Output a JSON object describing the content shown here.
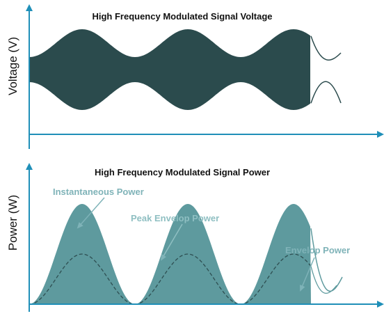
{
  "top_panel": {
    "title": "High Frequency Modulated Signal Voltage",
    "ylabel": "Voltage (V)"
  },
  "bottom_panel": {
    "title": "High Frequency Modulated Signal Power",
    "ylabel": "Power (W)",
    "annotations": {
      "instantaneous": "Instantaneous Power",
      "peak_envelope": "Peak Envelop Power",
      "envelope": "Envelop Power"
    }
  },
  "colors": {
    "axis": "#1f8fb8",
    "voltage_fill": "#2b4b4d",
    "power_fill": "#5e9a9e",
    "annotation": "#7fb3b8"
  }
}
